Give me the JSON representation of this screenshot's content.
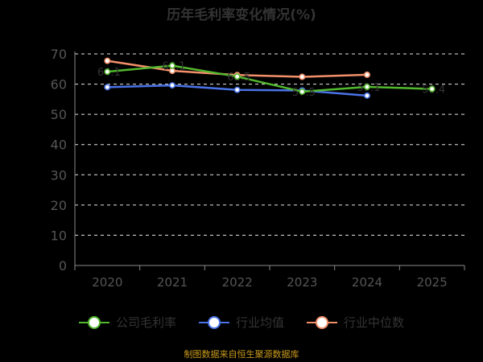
{
  "chart_data": {
    "type": "line",
    "title": "历年毛利率变化情况(%)",
    "ylabel": "",
    "categories": [
      "2020",
      "2021",
      "2022",
      "2023",
      "2024",
      "2025"
    ],
    "yticks": [
      "0",
      "10",
      "20",
      "30",
      "40",
      "50",
      "60",
      "70"
    ],
    "ylim": [
      0,
      70
    ],
    "grid": true,
    "legend_position": "bottom",
    "series": [
      {
        "name": "公司毛利率",
        "color": "#52b82e",
        "values": [
          64.1,
          66.1,
          62.5,
          57.5,
          59.1,
          58.4
        ],
        "labels": [
          "64.1",
          "66.1",
          "62.5",
          "57.5",
          "59.1",
          "58.4"
        ]
      },
      {
        "name": "行业均值",
        "color": "#4a73e8",
        "values": [
          59.0,
          59.6,
          58.1,
          57.9,
          56.2,
          null
        ],
        "labels": []
      },
      {
        "name": "行业中位数",
        "color": "#f3906a",
        "values": [
          67.7,
          64.4,
          63.0,
          62.4,
          63.1,
          null
        ],
        "labels": []
      }
    ]
  },
  "footer": {
    "source": "制图数据来自恒生聚源数据库"
  }
}
